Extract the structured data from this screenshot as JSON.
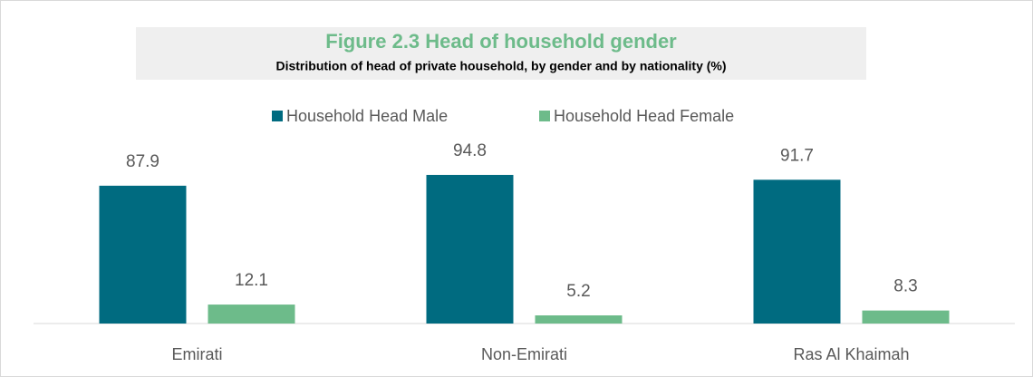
{
  "chart_data": {
    "type": "bar",
    "title": "Figure 2.3 Head of household gender",
    "subtitle": "Distribution of head of private household, by gender and by nationality (%)",
    "categories": [
      "Emirati",
      "Non-Emirati",
      "Ras Al Khaimah"
    ],
    "series": [
      {
        "name": "Household Head Male",
        "color": "#006b80",
        "values": [
          87.9,
          94.8,
          91.7
        ]
      },
      {
        "name": "Household Head Female",
        "color": "#6dbb8a",
        "values": [
          12.1,
          5.2,
          8.3
        ]
      }
    ],
    "ylim": [
      0,
      100
    ],
    "legend": "top"
  }
}
